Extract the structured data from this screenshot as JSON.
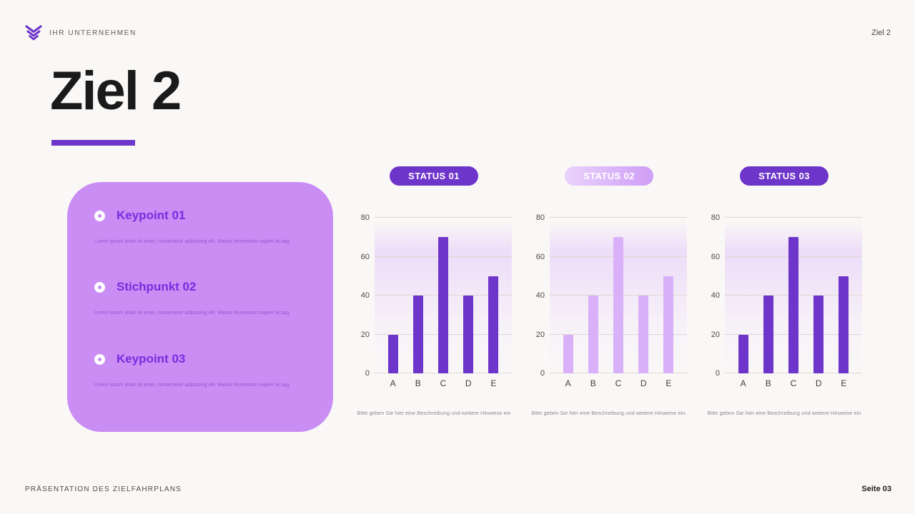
{
  "header": {
    "company": "IHR UNTERNEHMEN",
    "page_label": "Ziel 2"
  },
  "title": "Ziel 2",
  "keypoints": [
    {
      "title": "Keypoint 01",
      "body": "Lorem ipsum dolor sit amet, consectetur adipiscing elit. Mauris fermentum sapien at sag."
    },
    {
      "title": "Stichpunkt 02",
      "body": "Lorem ipsum dolor sit amet, consectetur adipiscing elit. Mauris fermentum sapien at sag."
    },
    {
      "title": "Keypoint 03",
      "body": "Lorem ipsum dolor sit amet, consectetur adipiscing elit. Mauris fermentum sapien at sag."
    }
  ],
  "chart_data": [
    {
      "type": "bar",
      "title": "STATUS 01",
      "variant": "dark",
      "categories": [
        "A",
        "B",
        "C",
        "D",
        "E"
      ],
      "values": [
        20,
        40,
        70,
        40,
        50
      ],
      "ylim": [
        0,
        80
      ],
      "yticks": [
        0,
        20,
        40,
        60,
        80
      ],
      "grid": true,
      "legend": false,
      "caption": "Bitte geben Sie hier eine Beschreibung und weitere Hinweise ein"
    },
    {
      "type": "bar",
      "title": "STATUS 02",
      "variant": "light",
      "categories": [
        "A",
        "B",
        "C",
        "D",
        "E"
      ],
      "values": [
        20,
        40,
        70,
        40,
        50
      ],
      "ylim": [
        0,
        80
      ],
      "yticks": [
        0,
        20,
        40,
        60,
        80
      ],
      "grid": true,
      "legend": false,
      "caption": "Bitte geben Sie hier eine Beschreibung und weitere Hinweise ein."
    },
    {
      "type": "bar",
      "title": "STATUS 03",
      "variant": "dark",
      "categories": [
        "A",
        "B",
        "C",
        "D",
        "E"
      ],
      "values": [
        20,
        40,
        70,
        40,
        50
      ],
      "ylim": [
        0,
        80
      ],
      "yticks": [
        0,
        20,
        40,
        60,
        80
      ],
      "grid": true,
      "legend": false,
      "caption": "Bitte geben Sie hier eine Beschreibung und weitere Hinweise ein"
    }
  ],
  "footer": {
    "left": "PRÄSENTATION DES ZIELFAHRPLANS",
    "right": "Seite 03"
  },
  "colors": {
    "accent_dark": "#6d35ca",
    "accent_light": "#d9b1f8",
    "card_bg": "#c98df3",
    "background": "#faf8f6"
  }
}
